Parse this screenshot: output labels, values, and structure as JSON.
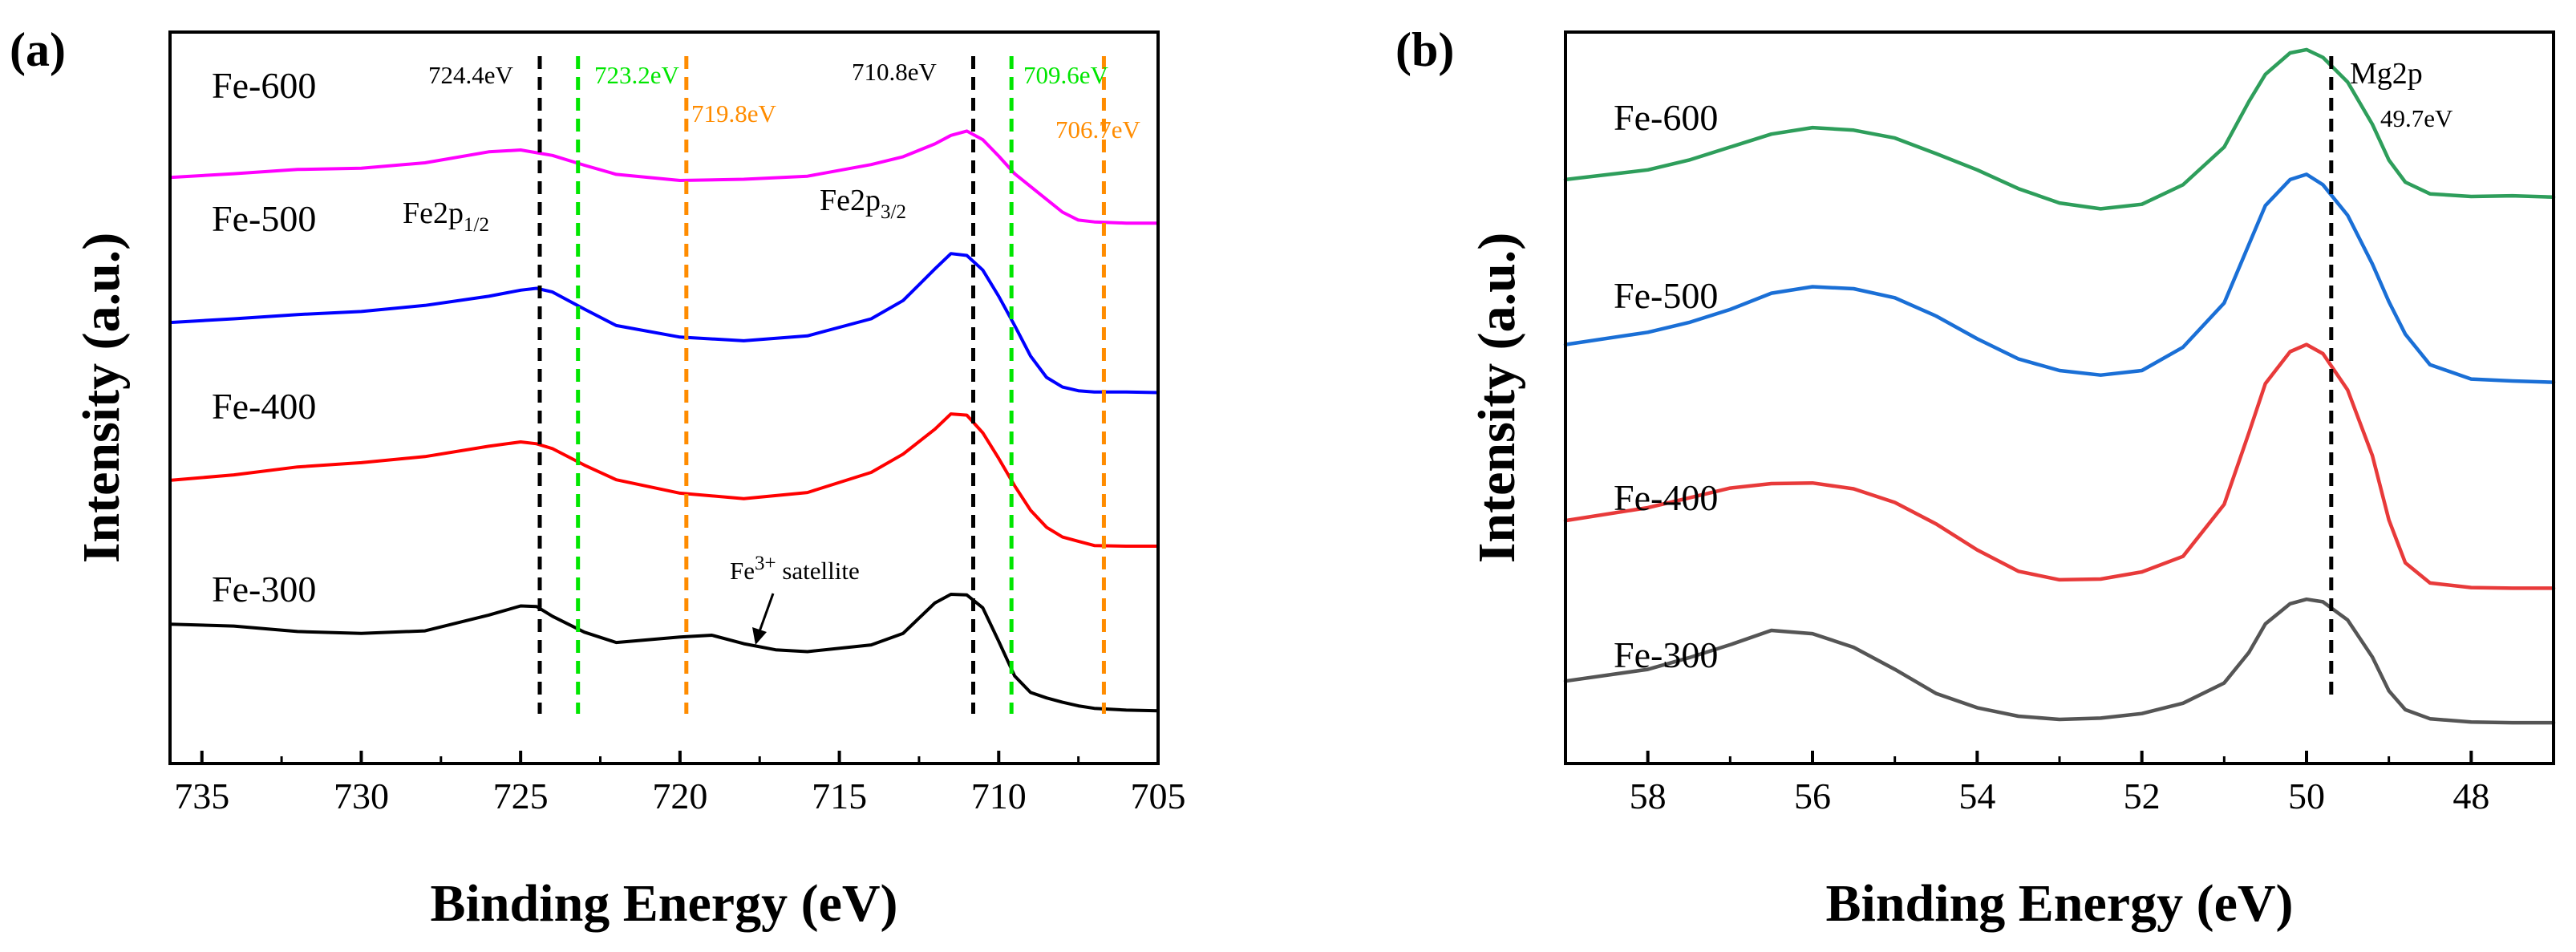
{
  "chart_data": [
    {
      "type": "line",
      "panel_label": "(a)",
      "title": "",
      "xlabel": "Binding Energy (eV)",
      "ylabel": "Intensity (a.u.)",
      "xlim": [
        736,
        705
      ],
      "ylim": [
        0,
        100
      ],
      "xticks": [
        735,
        730,
        725,
        720,
        715,
        710,
        705
      ],
      "grid": false,
      "legend": "labels beside curves",
      "series": [
        {
          "name": "Fe-600",
          "color": "#ff00ff",
          "x": [
            736,
            734,
            732,
            730,
            728,
            726,
            725,
            724,
            723,
            722,
            720,
            718,
            716,
            714,
            713,
            712,
            711.5,
            711,
            710.5,
            710,
            709.5,
            709,
            708,
            707.5,
            707,
            706,
            705
          ],
          "y": [
            88,
            88.6,
            89.3,
            89.5,
            90.4,
            92.2,
            92.5,
            91.6,
            90,
            88.5,
            87.5,
            87.7,
            88.2,
            90.1,
            91.4,
            93.5,
            94.9,
            95.6,
            94.2,
            91.5,
            88.6,
            86.5,
            82.3,
            81,
            80.7,
            80.5,
            80.5
          ]
        },
        {
          "name": "Fe-500",
          "color": "#0000ff",
          "x": [
            736,
            734,
            732,
            730,
            728,
            726,
            725,
            724.5,
            724,
            723,
            722,
            720,
            718,
            716,
            714,
            713,
            712,
            711.5,
            711,
            710.5,
            710,
            709.5,
            709,
            708.5,
            708,
            707.5,
            707,
            706,
            705
          ],
          "y": [
            64.2,
            64.8,
            65.5,
            66,
            67,
            68.5,
            69.5,
            69.8,
            69.2,
            66.4,
            63.7,
            61.8,
            61.2,
            62,
            64.8,
            67.8,
            73,
            75.5,
            75.2,
            72.8,
            68.5,
            63.7,
            58.7,
            55.2,
            53.6,
            53,
            52.8,
            52.8,
            52.7
          ]
        },
        {
          "name": "Fe-400",
          "color": "#ff0000",
          "x": [
            736,
            734,
            732,
            730,
            728,
            726,
            725,
            724.5,
            724,
            723,
            722,
            720,
            718,
            716,
            714,
            713,
            712,
            711.5,
            711,
            710.5,
            710,
            709.5,
            709,
            708.5,
            708,
            707.5,
            707,
            706,
            705
          ],
          "y": [
            38.3,
            39.2,
            40.5,
            41.2,
            42.2,
            43.9,
            44.6,
            44.3,
            43.5,
            40.8,
            38.4,
            36.2,
            35.3,
            36.3,
            39.6,
            42.6,
            46.7,
            49.2,
            49,
            46.1,
            41.9,
            37.4,
            33.4,
            30.6,
            29,
            28.3,
            27.6,
            27.5,
            27.5
          ]
        },
        {
          "name": "Fe-300",
          "color": "#000000",
          "x": [
            736,
            734,
            732,
            730,
            728,
            726,
            725,
            724.5,
            724,
            723,
            722,
            720,
            719,
            718,
            717,
            716,
            714,
            713,
            712,
            711.5,
            711,
            710.5,
            710,
            709.5,
            709,
            708.5,
            708,
            707.5,
            707,
            706,
            705
          ],
          "y": [
            14.7,
            14.4,
            13.5,
            13.2,
            13.6,
            16.2,
            17.7,
            17.6,
            16,
            13.4,
            11.7,
            12.6,
            12.9,
            11.5,
            10.5,
            10.2,
            11.3,
            13.2,
            18.2,
            19.6,
            19.5,
            17.4,
            11.9,
            6.2,
            3.5,
            2.6,
            1.9,
            1.3,
            0.9,
            0.6,
            0.5
          ]
        }
      ],
      "series_text": {
        "Fe-600": "Fe-600",
        "Fe-500": "Fe-500",
        "Fe-400": "Fe-400",
        "Fe-300": "Fe-300"
      },
      "reference_lines": [
        {
          "x": 724.4,
          "label": "724.4eV",
          "color": "#000000"
        },
        {
          "x": 723.2,
          "label": "723.2eV",
          "color": "#00e600"
        },
        {
          "x": 719.8,
          "label": "719.8eV",
          "color": "#ff8c00"
        },
        {
          "x": 710.8,
          "label": "710.8eV",
          "color": "#000000"
        },
        {
          "x": 709.6,
          "label": "709.6eV",
          "color": "#00e600"
        },
        {
          "x": 706.7,
          "label": "706.7eV",
          "color": "#ff8c00"
        }
      ],
      "annotations": {
        "fe2p12_main": "Fe2p",
        "fe2p12_sub": "1/2",
        "fe2p32_main": "Fe2p",
        "fe2p32_sub": "3/2",
        "satellite_prefix": "Fe",
        "satellite_sup": "3+",
        "satellite_suffix": " satellite"
      }
    },
    {
      "type": "line",
      "panel_label": "(b)",
      "title": "",
      "xlabel": "Binding Energy (eV)",
      "ylabel": "Intensity (a.u.)",
      "xlim": [
        59,
        47
      ],
      "ylim": [
        0,
        100
      ],
      "xticks": [
        58,
        56,
        54,
        52,
        50,
        48
      ],
      "grid": false,
      "legend": "labels beside curves",
      "series": [
        {
          "name": "Fe-600",
          "color": "#2e9e5b",
          "x": [
            59,
            58,
            57.5,
            57,
            56.5,
            56,
            55.5,
            55,
            54.5,
            54,
            53.5,
            53,
            52.5,
            52,
            51.5,
            51,
            50.7,
            50.5,
            50.2,
            50,
            49.8,
            49.5,
            49.2,
            49,
            48.8,
            48.5,
            48,
            47.5,
            47
          ],
          "y": [
            81,
            82.5,
            84,
            86,
            88,
            89,
            88.6,
            87.4,
            85,
            82.5,
            79.6,
            77.4,
            76.5,
            77.2,
            80.2,
            86,
            93,
            97.2,
            100.5,
            101,
            99.8,
            96,
            89.5,
            84,
            80.6,
            78.8,
            78.4,
            78.5,
            78.3
          ]
        },
        {
          "name": "Fe-500",
          "color": "#1a6fd6",
          "x": [
            59,
            58,
            57.5,
            57,
            56.5,
            56,
            55.5,
            55,
            54.5,
            54,
            53.5,
            53,
            52.5,
            52,
            51.5,
            51,
            50.7,
            50.5,
            50.2,
            50,
            49.8,
            49.5,
            49.2,
            49,
            48.8,
            48.5,
            48,
            47.5,
            47
          ],
          "y": [
            55.6,
            57.5,
            59,
            61,
            63.5,
            64.5,
            64.2,
            62.8,
            60,
            56.5,
            53.4,
            51.6,
            50.9,
            51.6,
            55.2,
            62,
            71,
            77,
            81,
            81.8,
            80.2,
            75.5,
            68,
            62.2,
            57.2,
            52.5,
            50.3,
            50,
            49.8
          ]
        },
        {
          "name": "Fe-400",
          "color": "#e83a3a",
          "x": [
            59,
            58,
            57.5,
            57,
            56.5,
            56,
            55.5,
            55,
            54.5,
            54,
            53.5,
            53,
            52.5,
            52,
            51.5,
            51,
            50.7,
            50.5,
            50.2,
            50,
            49.8,
            49.5,
            49.2,
            49,
            48.8,
            48.5,
            48,
            47.5,
            47
          ],
          "y": [
            28.5,
            30.5,
            32,
            33.5,
            34.2,
            34.3,
            33.4,
            31.3,
            28,
            24,
            20.7,
            19.4,
            19.5,
            20.6,
            23,
            31,
            42,
            49.6,
            54.5,
            55.6,
            54.2,
            48.6,
            38.5,
            28.6,
            22,
            18.9,
            18.2,
            18.1,
            18.1
          ]
        },
        {
          "name": "Fe-300",
          "color": "#555555",
          "x": [
            59,
            58,
            57.5,
            57,
            56.5,
            56,
            55.5,
            55,
            54.5,
            54,
            53.5,
            53,
            52.5,
            52,
            51.5,
            51,
            50.7,
            50.5,
            50.2,
            50,
            49.8,
            49.5,
            49.2,
            49,
            48.8,
            48.5,
            48,
            47.5,
            47
          ],
          "y": [
            3.8,
            5.6,
            7.4,
            9.4,
            11.6,
            11.1,
            9,
            5.6,
            1.9,
            -0.3,
            -1.6,
            -2.1,
            -1.9,
            -1.2,
            0.4,
            3.5,
            8.2,
            12.6,
            15.7,
            16.4,
            16,
            13.2,
            7.5,
            2.3,
            -0.6,
            -2,
            -2.5,
            -2.6,
            -2.6
          ]
        }
      ],
      "series_text": {
        "Fe-600": "Fe-600",
        "Fe-500": "Fe-500",
        "Fe-400": "Fe-400",
        "Fe-300": "Fe-300"
      },
      "reference_lines": [
        {
          "x": 49.7,
          "label": "49.7eV",
          "color": "#000000"
        }
      ],
      "annotations": {
        "mg2p": "Mg2p"
      }
    }
  ]
}
